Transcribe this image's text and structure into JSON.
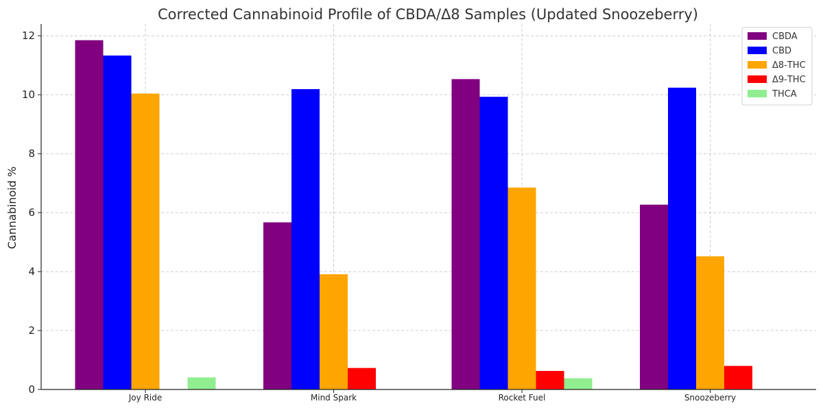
{
  "chart_data": {
    "type": "bar",
    "title": "Corrected Cannabinoid Profile of CBDA/Δ8 Samples (Updated Snoozeberry)",
    "xlabel": "",
    "ylabel": "Cannabinoid %",
    "categories": [
      "Joy Ride",
      "Mind Spark",
      "Rocket Fuel",
      "Snoozeberry"
    ],
    "ylim": [
      0,
      12.4
    ],
    "yticks": [
      0,
      2,
      4,
      6,
      8,
      10,
      12
    ],
    "grid": true,
    "legend_position": "top-right",
    "series": [
      {
        "name": "CBDA",
        "color": "#800080",
        "values": [
          11.85,
          5.67,
          10.53,
          6.27
        ]
      },
      {
        "name": "CBD",
        "color": "#0000ff",
        "values": [
          11.33,
          10.19,
          9.93,
          10.24
        ]
      },
      {
        "name": "Δ8-THC",
        "color": "#ffa500",
        "values": [
          10.04,
          3.91,
          6.85,
          4.52
        ]
      },
      {
        "name": "Δ9-THC",
        "color": "#ff0000",
        "values": [
          0,
          0.73,
          0.63,
          0.8
        ]
      },
      {
        "name": "THCA",
        "color": "#90ee90",
        "values": [
          0.41,
          0,
          0.38,
          0
        ]
      }
    ]
  }
}
